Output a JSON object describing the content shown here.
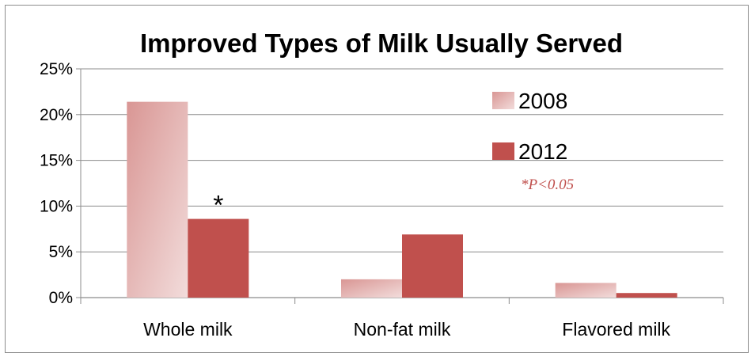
{
  "chart_data": {
    "type": "bar",
    "title": "Improved Types of Milk Usually Served",
    "categories": [
      "Whole milk",
      "Non-fat milk",
      "Flavored milk"
    ],
    "series": [
      {
        "name": "2008",
        "values": [
          21.4,
          2.0,
          1.6
        ]
      },
      {
        "name": "2012",
        "values": [
          8.6,
          6.9,
          0.5
        ]
      }
    ],
    "ylim": [
      0,
      25
    ],
    "yticks": [
      "0%",
      "5%",
      "10%",
      "15%",
      "20%",
      "25%"
    ],
    "ytick_values": [
      0,
      5,
      10,
      15,
      20,
      25
    ],
    "grid": true,
    "legend_position": "top-right",
    "significance_marker": {
      "symbol": "*",
      "category": "Whole milk",
      "series": "2012"
    },
    "annotation": "*P<0.05",
    "colors": {
      "2008_light": "#f2dcdb",
      "2008_dark": "#d99694",
      "2012": "#c0504d",
      "grid": "#8c8c8c",
      "note": "#c0504d"
    }
  }
}
